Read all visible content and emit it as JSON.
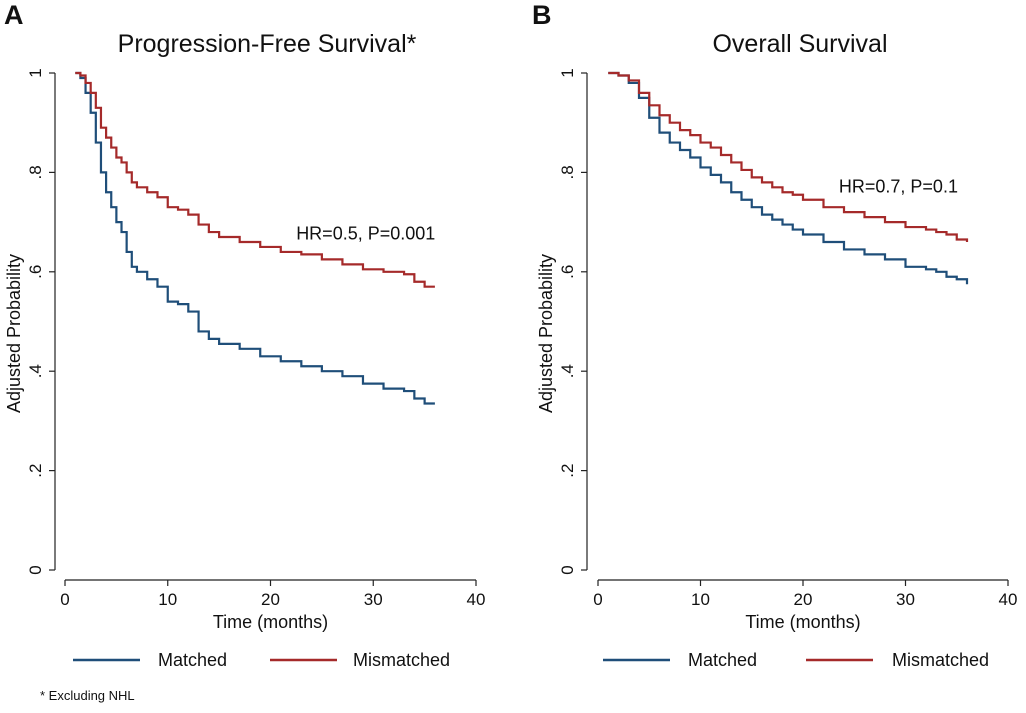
{
  "panels": [
    {
      "letter": "A"
    },
    {
      "letter": "B"
    }
  ],
  "footnote": "* Excluding NHL",
  "colors": {
    "matched": "#1f4e79",
    "mismatched": "#a52a2a"
  },
  "chart_data": [
    {
      "type": "line",
      "title": "Progression-Free Survival*",
      "xlabel": "Time (months)",
      "ylabel": "Adjusted Probability",
      "xlim": [
        0,
        40
      ],
      "ylim": [
        0,
        1
      ],
      "xticks": [
        0,
        10,
        20,
        30,
        40
      ],
      "xtick_labels": [
        "0",
        "10",
        "20",
        "30",
        "40"
      ],
      "yticks": [
        0,
        0.2,
        0.4,
        0.6,
        0.8,
        1
      ],
      "ytick_labels": [
        "0",
        ".2",
        ".4",
        ".6",
        ".8",
        "1"
      ],
      "annotation": {
        "text": "HR=0.5, P=0.001",
        "x": 22.5,
        "y": 0.665
      },
      "legend": [
        "Matched",
        "Mismatched"
      ],
      "series": [
        {
          "name": "Matched",
          "color": "#1f4e79",
          "points": [
            [
              1,
              1.0
            ],
            [
              1.5,
              0.99
            ],
            [
              2,
              0.96
            ],
            [
              2.5,
              0.92
            ],
            [
              3,
              0.86
            ],
            [
              3.5,
              0.8
            ],
            [
              4,
              0.76
            ],
            [
              4.5,
              0.73
            ],
            [
              5,
              0.7
            ],
            [
              5.5,
              0.68
            ],
            [
              6,
              0.64
            ],
            [
              6.5,
              0.61
            ],
            [
              7,
              0.6
            ],
            [
              8,
              0.585
            ],
            [
              9,
              0.57
            ],
            [
              10,
              0.54
            ],
            [
              11,
              0.535
            ],
            [
              12,
              0.52
            ],
            [
              13,
              0.48
            ],
            [
              14,
              0.465
            ],
            [
              15,
              0.455
            ],
            [
              17,
              0.445
            ],
            [
              19,
              0.43
            ],
            [
              21,
              0.42
            ],
            [
              23,
              0.41
            ],
            [
              25,
              0.4
            ],
            [
              27,
              0.39
            ],
            [
              29,
              0.375
            ],
            [
              31,
              0.365
            ],
            [
              33,
              0.36
            ],
            [
              34,
              0.345
            ],
            [
              35,
              0.335
            ],
            [
              36,
              0.335
            ]
          ]
        },
        {
          "name": "Mismatched",
          "color": "#a52a2a",
          "points": [
            [
              1,
              1.0
            ],
            [
              1.5,
              0.995
            ],
            [
              2,
              0.98
            ],
            [
              2.5,
              0.96
            ],
            [
              3,
              0.93
            ],
            [
              3.5,
              0.89
            ],
            [
              4,
              0.87
            ],
            [
              4.5,
              0.85
            ],
            [
              5,
              0.83
            ],
            [
              5.5,
              0.82
            ],
            [
              6,
              0.8
            ],
            [
              6.5,
              0.78
            ],
            [
              7,
              0.77
            ],
            [
              8,
              0.76
            ],
            [
              9,
              0.75
            ],
            [
              10,
              0.73
            ],
            [
              11,
              0.725
            ],
            [
              12,
              0.715
            ],
            [
              13,
              0.695
            ],
            [
              14,
              0.68
            ],
            [
              15,
              0.67
            ],
            [
              17,
              0.66
            ],
            [
              19,
              0.65
            ],
            [
              21,
              0.64
            ],
            [
              23,
              0.635
            ],
            [
              25,
              0.625
            ],
            [
              27,
              0.615
            ],
            [
              29,
              0.605
            ],
            [
              31,
              0.6
            ],
            [
              33,
              0.595
            ],
            [
              34,
              0.58
            ],
            [
              35,
              0.57
            ],
            [
              36,
              0.57
            ]
          ]
        }
      ]
    },
    {
      "type": "line",
      "title": "Overall Survival",
      "xlabel": "Time (months)",
      "ylabel": "Adjusted Probability",
      "xlim": [
        0,
        40
      ],
      "ylim": [
        0,
        1
      ],
      "xticks": [
        0,
        10,
        20,
        30,
        40
      ],
      "xtick_labels": [
        "0",
        "10",
        "20",
        "30",
        "40"
      ],
      "yticks": [
        0,
        0.2,
        0.4,
        0.6,
        0.8,
        1
      ],
      "ytick_labels": [
        "0",
        ".2",
        ".4",
        ".6",
        ".8",
        "1"
      ],
      "annotation": {
        "text": "HR=0.7, P=0.1",
        "x": 23.5,
        "y": 0.76
      },
      "legend": [
        "Matched",
        "Mismatched"
      ],
      "series": [
        {
          "name": "Matched",
          "color": "#1f4e79",
          "points": [
            [
              1,
              1.0
            ],
            [
              2,
              0.995
            ],
            [
              3,
              0.98
            ],
            [
              4,
              0.95
            ],
            [
              5,
              0.91
            ],
            [
              6,
              0.88
            ],
            [
              7,
              0.86
            ],
            [
              8,
              0.845
            ],
            [
              9,
              0.83
            ],
            [
              10,
              0.81
            ],
            [
              11,
              0.795
            ],
            [
              12,
              0.78
            ],
            [
              13,
              0.76
            ],
            [
              14,
              0.745
            ],
            [
              15,
              0.73
            ],
            [
              16,
              0.715
            ],
            [
              17,
              0.705
            ],
            [
              18,
              0.695
            ],
            [
              19,
              0.685
            ],
            [
              20,
              0.675
            ],
            [
              22,
              0.66
            ],
            [
              24,
              0.645
            ],
            [
              26,
              0.635
            ],
            [
              28,
              0.625
            ],
            [
              30,
              0.61
            ],
            [
              32,
              0.605
            ],
            [
              33,
              0.6
            ],
            [
              34,
              0.59
            ],
            [
              35,
              0.585
            ],
            [
              36,
              0.575
            ]
          ]
        },
        {
          "name": "Mismatched",
          "color": "#a52a2a",
          "points": [
            [
              1,
              1.0
            ],
            [
              2,
              0.995
            ],
            [
              3,
              0.985
            ],
            [
              4,
              0.96
            ],
            [
              5,
              0.935
            ],
            [
              6,
              0.915
            ],
            [
              7,
              0.9
            ],
            [
              8,
              0.885
            ],
            [
              9,
              0.875
            ],
            [
              10,
              0.86
            ],
            [
              11,
              0.85
            ],
            [
              12,
              0.835
            ],
            [
              13,
              0.82
            ],
            [
              14,
              0.805
            ],
            [
              15,
              0.79
            ],
            [
              16,
              0.78
            ],
            [
              17,
              0.77
            ],
            [
              18,
              0.76
            ],
            [
              19,
              0.755
            ],
            [
              20,
              0.745
            ],
            [
              22,
              0.73
            ],
            [
              24,
              0.72
            ],
            [
              26,
              0.71
            ],
            [
              28,
              0.7
            ],
            [
              30,
              0.69
            ],
            [
              32,
              0.685
            ],
            [
              33,
              0.68
            ],
            [
              34,
              0.675
            ],
            [
              35,
              0.665
            ],
            [
              36,
              0.66
            ]
          ]
        }
      ]
    }
  ]
}
